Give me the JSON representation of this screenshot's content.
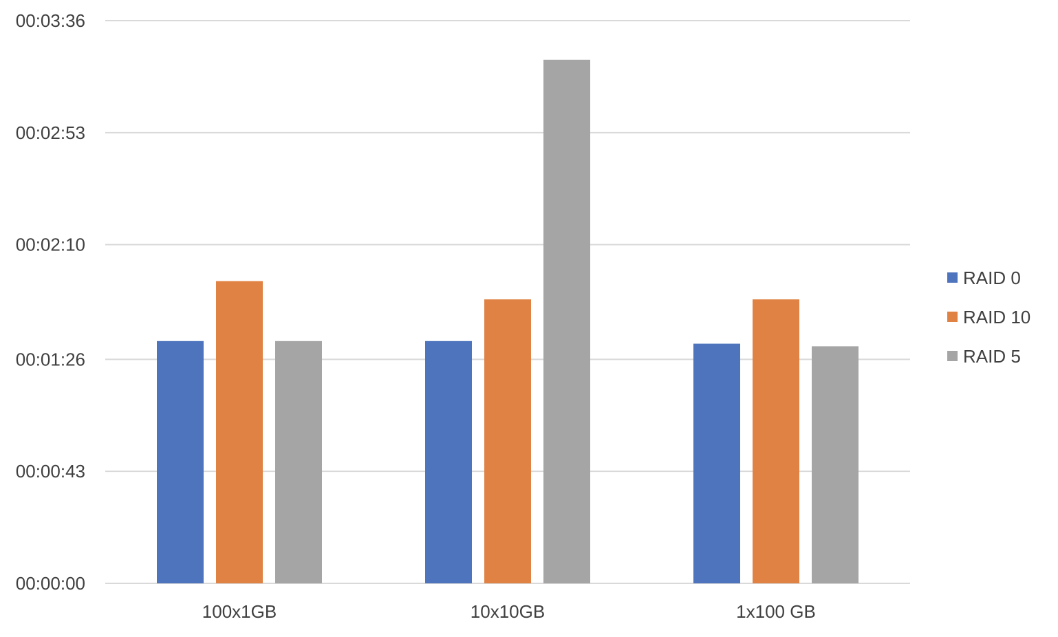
{
  "chart_data": {
    "type": "bar",
    "title": "",
    "xlabel": "",
    "ylabel": "",
    "categories": [
      "100x1GB",
      "10x10GB",
      "1x100 GB"
    ],
    "series": [
      {
        "name": "RAID 0",
        "color": "#4E74BE",
        "values_seconds": [
          93,
          93,
          92
        ],
        "values": [
          "00:01:33",
          "00:01:33",
          "00:01:32"
        ]
      },
      {
        "name": "RAID 10",
        "color": "#E08243",
        "values_seconds": [
          116,
          109,
          109
        ],
        "values": [
          "00:01:56",
          "00:01:49",
          "00:01:49"
        ]
      },
      {
        "name": "RAID 5",
        "color": "#A5A5A5",
        "values_seconds": [
          93,
          201,
          91
        ],
        "values": [
          "00:01:33",
          "00:03:21",
          "00:01:31"
        ]
      }
    ],
    "yticks": [
      "00:00:00",
      "00:00:43",
      "00:01:26",
      "00:02:10",
      "00:02:53",
      "00:03:36"
    ],
    "ytick_seconds": [
      0,
      43,
      86,
      130,
      173,
      216
    ],
    "ylim_seconds": [
      0,
      216
    ],
    "grid": true,
    "legend_position": "right"
  }
}
